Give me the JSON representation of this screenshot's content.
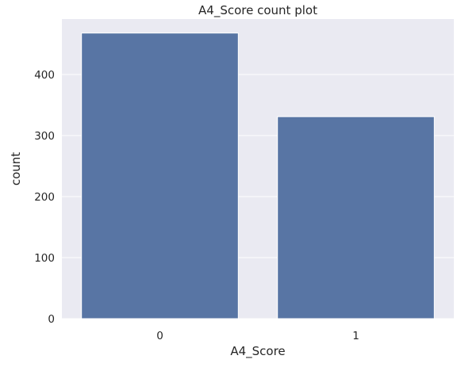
{
  "chart_data": {
    "type": "bar",
    "title": "A4_Score count plot",
    "xlabel": "A4_Score",
    "ylabel": "count",
    "categories": [
      "0",
      "1"
    ],
    "values": [
      468,
      331
    ],
    "ylim": [
      0,
      491
    ],
    "yticks": [
      0,
      100,
      200,
      300,
      400
    ],
    "grid": true,
    "legend": "none",
    "colors": {
      "bar": "#5875a4",
      "plot_background": "#eaeaf2",
      "grid": "#ffffff",
      "text": "#262626"
    }
  }
}
